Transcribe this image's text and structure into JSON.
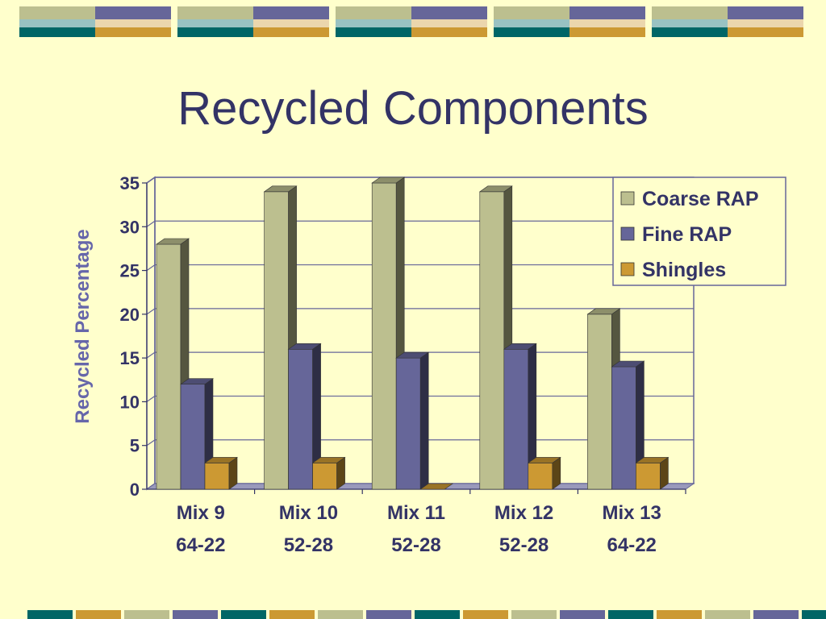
{
  "slide": {
    "title": "Recycled Components"
  },
  "colors": {
    "background": "#ffffcc",
    "title": "#333366",
    "band_teal": "#006666",
    "band_olive": "#bcbf8f",
    "band_navy": "#666699",
    "band_gold": "#cc9933"
  },
  "chart_data": {
    "type": "bar",
    "categories": [
      [
        "Mix 9",
        "64-22"
      ],
      [
        "Mix 10",
        "52-28"
      ],
      [
        "Mix 11",
        "52-28"
      ],
      [
        "Mix 12",
        "52-28"
      ],
      [
        "Mix 13",
        "64-22"
      ]
    ],
    "series": [
      {
        "name": "Coarse RAP",
        "values": [
          28,
          34,
          35,
          34,
          20
        ],
        "color": "#bcbf8f"
      },
      {
        "name": "Fine RAP",
        "values": [
          12,
          16,
          15,
          16,
          14
        ],
        "color": "#666699"
      },
      {
        "name": "Shingles",
        "values": [
          3,
          3,
          0,
          3,
          3
        ],
        "color": "#cc9933"
      }
    ],
    "title": "",
    "xlabel": "",
    "ylabel": "Recycled Percentage",
    "ylim": [
      0,
      35
    ],
    "yticks": [
      0,
      5,
      10,
      15,
      20,
      25,
      30,
      35
    ],
    "grid": true,
    "legend_position": "top-right",
    "three_d": true
  }
}
